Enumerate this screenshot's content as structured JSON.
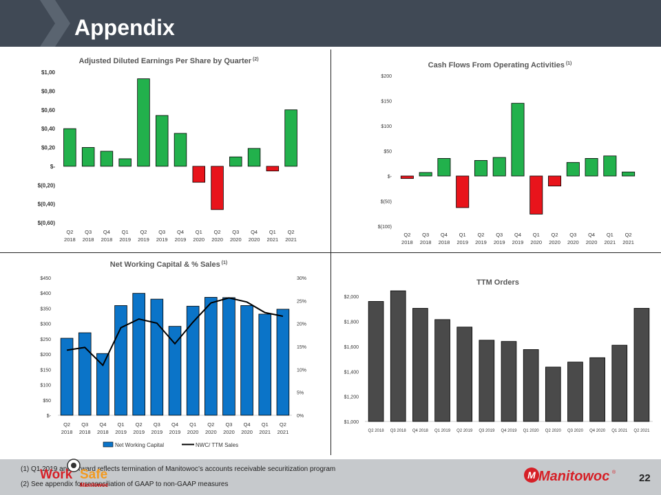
{
  "page": {
    "title": "Appendix",
    "page_number": "22",
    "footnotes": [
      "(1)  Q1 2019 and forward reflects termination of Manitowoc’s accounts receivable securitization program",
      "(2)  See appendix for reconciliation of GAAP to non-GAAP measures"
    ],
    "worksafe": {
      "work": "Work",
      "safe": "Safe",
      "sub": "Manitowoc"
    },
    "brand": "Manitowoc",
    "brand_reg": "®",
    "colors": {
      "header": "#404955",
      "positive": "#22b14c",
      "negative": "#e8141b",
      "blue": "#0b74c8",
      "dark": "#4a4a4a",
      "brand_red": "#d62027"
    }
  },
  "chart_data": [
    {
      "id": "eps",
      "type": "bar",
      "title": "Adjusted Diluted Earnings Per Share by Quarter",
      "title_sup": "(2)",
      "categories_q": [
        "Q2",
        "Q3",
        "Q4",
        "Q1",
        "Q2",
        "Q3",
        "Q4",
        "Q1",
        "Q2",
        "Q3",
        "Q4",
        "Q1",
        "Q2"
      ],
      "categories_y": [
        "2018",
        "2018",
        "2018",
        "2019",
        "2019",
        "2019",
        "2019",
        "2020",
        "2020",
        "2020",
        "2020",
        "2021",
        "2021"
      ],
      "values": [
        0.4,
        0.2,
        0.16,
        0.08,
        0.93,
        0.54,
        0.35,
        -0.17,
        -0.46,
        0.1,
        0.19,
        -0.05,
        0.6
      ],
      "ylim": [
        -0.6,
        1.0
      ],
      "yticks": [
        1.0,
        0.8,
        0.6,
        0.4,
        0.2,
        0,
        -0.2,
        -0.4,
        -0.6
      ],
      "ytick_labels": [
        "$1,00",
        "$0,80",
        "$0,60",
        "$0,40",
        "$0,20",
        "$-",
        "$(0,20)",
        "$(0,40)",
        "$(0,60)"
      ]
    },
    {
      "id": "cfo",
      "type": "bar",
      "title": "Cash Flows From Operating Activities",
      "title_sup": "(1)",
      "categories_q": [
        "Q2",
        "Q3",
        "Q4",
        "Q1",
        "Q2",
        "Q3",
        "Q4",
        "Q1",
        "Q2",
        "Q3",
        "Q4",
        "Q1",
        "Q2"
      ],
      "categories_y": [
        "2018",
        "2018",
        "2018",
        "2019",
        "2019",
        "2019",
        "2019",
        "2020",
        "2020",
        "2020",
        "2020",
        "2021",
        "2021"
      ],
      "values": [
        -5,
        7,
        35,
        -63,
        31,
        37,
        145,
        -76,
        -20,
        27,
        35,
        40,
        8
      ],
      "ylim": [
        -100,
        200
      ],
      "yticks": [
        200,
        150,
        100,
        50,
        0,
        -50,
        -100
      ],
      "ytick_labels": [
        "$200",
        "$150",
        "$100",
        "$50",
        "$-",
        "$(50)",
        "$(100)"
      ]
    },
    {
      "id": "nwc",
      "type": "bar",
      "title": "Net Working Capital & % Sales",
      "title_sup": "(1)",
      "categories_q": [
        "Q2",
        "Q3",
        "Q4",
        "Q1",
        "Q2",
        "Q3",
        "Q4",
        "Q1",
        "Q2",
        "Q3",
        "Q4",
        "Q1",
        "Q2"
      ],
      "categories_y": [
        "2018",
        "2018",
        "2018",
        "2019",
        "2019",
        "2019",
        "2019",
        "2020",
        "2020",
        "2020",
        "2020",
        "2021",
        "2021"
      ],
      "series": [
        {
          "name": "Net Working Capital",
          "kind": "bar",
          "values": [
            252,
            270,
            202,
            359,
            399,
            380,
            291,
            357,
            386,
            385,
            359,
            331,
            347
          ]
        },
        {
          "name": "NWC/ TTM Sales",
          "kind": "line",
          "values": [
            14.2,
            14.8,
            10.9,
            19.1,
            21.0,
            20.1,
            15.6,
            20.3,
            24.5,
            25.6,
            24.7,
            22.4,
            21.6
          ]
        }
      ],
      "ylim": [
        0,
        450
      ],
      "yticks": [
        450,
        400,
        350,
        300,
        250,
        200,
        150,
        100,
        50,
        0
      ],
      "ytick_labels": [
        "$450",
        "$400",
        "$350",
        "$300",
        "$250",
        "$200",
        "$150",
        "$100",
        "$50",
        "$-"
      ],
      "y2lim": [
        0,
        30
      ],
      "y2ticks": [
        30,
        25,
        20,
        15,
        10,
        5,
        0
      ],
      "y2tick_labels": [
        "30%",
        "25%",
        "20%",
        "15%",
        "10%",
        "5%",
        "0%"
      ],
      "legend_position": "bottom"
    },
    {
      "id": "ttm",
      "type": "bar",
      "title": "TTM Orders",
      "categories": [
        "Q2 2018",
        "Q3 2018",
        "Q4 2018",
        "Q1 2019",
        "Q2 2019",
        "Q3 2019",
        "Q4 2019",
        "Q1 2020",
        "Q2 2020",
        "Q3 2020",
        "Q4 2020",
        "Q1 2021",
        "Q2 2021"
      ],
      "values": [
        1960,
        2045,
        1905,
        1815,
        1755,
        1650,
        1640,
        1575,
        1435,
        1475,
        1510,
        1610,
        1905
      ],
      "ylim": [
        1000,
        2100
      ],
      "yticks": [
        2000,
        1800,
        1600,
        1400,
        1200,
        1000
      ],
      "ytick_labels": [
        "$2,000",
        "$1,800",
        "$1,600",
        "$1,400",
        "$1,200",
        "$1,000"
      ]
    }
  ]
}
